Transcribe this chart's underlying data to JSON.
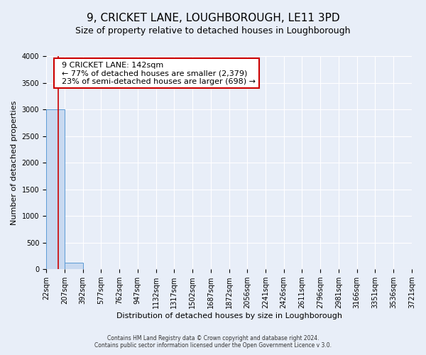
{
  "title": "9, CRICKET LANE, LOUGHBOROUGH, LE11 3PD",
  "subtitle": "Size of property relative to detached houses in Loughborough",
  "xlabel": "Distribution of detached houses by size in Loughborough",
  "ylabel": "Number of detached properties",
  "bin_edges": [
    22,
    207,
    392,
    577,
    762,
    947,
    1132,
    1317,
    1502,
    1687,
    1872,
    2056,
    2241,
    2426,
    2611,
    2796,
    2981,
    3166,
    3351,
    3536,
    3721
  ],
  "bar_heights": [
    3000,
    125,
    0,
    0,
    0,
    0,
    0,
    0,
    0,
    0,
    0,
    0,
    0,
    0,
    0,
    0,
    0,
    0,
    0,
    0
  ],
  "bar_color": "#c8d9f0",
  "bar_edge_color": "#5b9bd5",
  "property_value": 142,
  "annotation_title": "9 CRICKET LANE: 142sqm",
  "annotation_line1": "← 77% of detached houses are smaller (2,379)",
  "annotation_line2": "23% of semi-detached houses are larger (698) →",
  "annotation_box_color": "#ffffff",
  "annotation_box_edge_color": "#cc0000",
  "red_line_color": "#cc0000",
  "ylim": [
    0,
    4000
  ],
  "yticks": [
    0,
    500,
    1000,
    1500,
    2000,
    2500,
    3000,
    3500,
    4000
  ],
  "footer_line1": "Contains HM Land Registry data © Crown copyright and database right 2024.",
  "footer_line2": "Contains public sector information licensed under the Open Government Licence v 3.0.",
  "bg_color": "#e8eef8",
  "grid_color": "#ffffff",
  "title_fontsize": 11,
  "subtitle_fontsize": 9,
  "axis_label_fontsize": 8,
  "tick_fontsize": 7,
  "annotation_fontsize": 8,
  "footer_fontsize": 5.5
}
